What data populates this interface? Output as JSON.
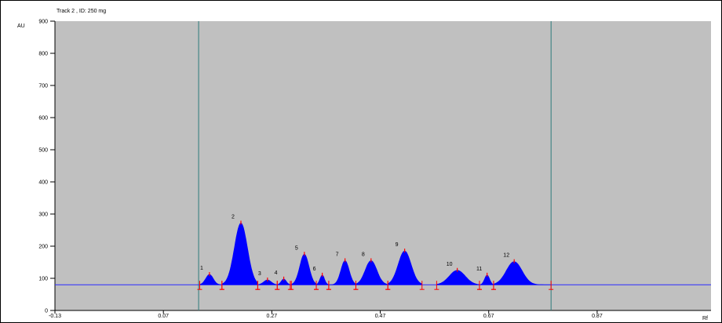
{
  "chart_data": {
    "type": "line",
    "title": "Track  2 , ID: 250 mg",
    "xlabel": "Rf",
    "ylabel": "AU",
    "xlim": [
      -0.13,
      1.08
    ],
    "ylim": [
      0,
      900
    ],
    "x_ticks": [
      "-0.13",
      "0.07",
      "0.27",
      "0.47",
      "0.67",
      "0.87"
    ],
    "y_ticks": [
      "0",
      "100",
      "200",
      "300",
      "400",
      "500",
      "600",
      "700",
      "800",
      "900"
    ],
    "baseline": 80,
    "integration_window": [
      0.135,
      0.785
    ],
    "colors": {
      "plot_bg": "#c0c0c0",
      "fill": "#0000ff",
      "baseline": "#2a2aff",
      "markers": "#ff0000",
      "window_lines": "#2e7b7b"
    },
    "peaks": [
      {
        "label": "1",
        "rf": 0.155,
        "height": 112,
        "start": 0.137,
        "end": 0.178
      },
      {
        "label": "2",
        "rf": 0.213,
        "height": 272,
        "start": 0.178,
        "end": 0.244
      },
      {
        "label": "3",
        "rf": 0.262,
        "height": 95,
        "start": 0.244,
        "end": 0.28
      },
      {
        "label": "4",
        "rf": 0.292,
        "height": 98,
        "start": 0.28,
        "end": 0.304
      },
      {
        "label": "5",
        "rf": 0.33,
        "height": 175,
        "start": 0.306,
        "end": 0.352
      },
      {
        "label": "6",
        "rf": 0.363,
        "height": 110,
        "start": 0.352,
        "end": 0.375
      },
      {
        "label": "7",
        "rf": 0.405,
        "height": 155,
        "start": 0.375,
        "end": 0.425
      },
      {
        "label": "8",
        "rf": 0.453,
        "height": 155,
        "start": 0.425,
        "end": 0.484
      },
      {
        "label": "9",
        "rf": 0.515,
        "height": 185,
        "start": 0.484,
        "end": 0.547
      },
      {
        "label": "10",
        "rf": 0.612,
        "height": 125,
        "start": 0.574,
        "end": 0.653
      },
      {
        "label": "11",
        "rf": 0.667,
        "height": 110,
        "start": 0.653,
        "end": 0.679
      },
      {
        "label": "12",
        "rf": 0.717,
        "height": 152,
        "start": 0.679,
        "end": 0.785
      }
    ]
  }
}
